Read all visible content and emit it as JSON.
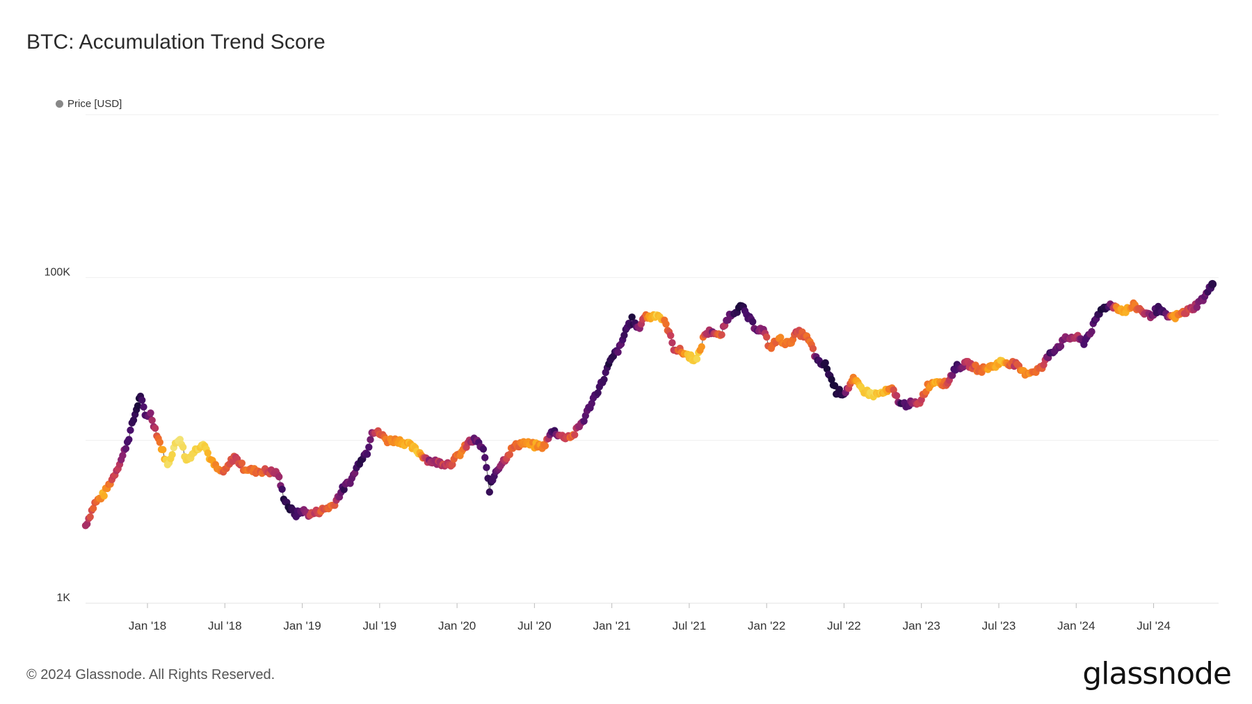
{
  "chart_data": {
    "type": "scatter",
    "title": "BTC: Accumulation Trend Score",
    "legend": [
      {
        "label": "Price [USD]",
        "color": "#888888"
      }
    ],
    "legend_placement": "top-left",
    "y_scale": "log",
    "ylim": [
      1000,
      1000000
    ],
    "y_ticks": [
      {
        "value": 1000,
        "label": "1K"
      },
      {
        "value": 100000,
        "label": "100K"
      }
    ],
    "y_gridlines": [
      1000,
      10000,
      100000,
      1000000
    ],
    "x_ticks": [
      "Jan '18",
      "Jul '18",
      "Jan '19",
      "Jul '19",
      "Jan '20",
      "Jul '20",
      "Jan '21",
      "Jul '21",
      "Jan '22",
      "Jul '22",
      "Jan '23",
      "Jul '23",
      "Jan '24",
      "Jul '24"
    ],
    "xlim": [
      2017.6,
      2024.92
    ],
    "color_scale": [
      "#1a0a3a",
      "#4a0f6b",
      "#8a2270",
      "#c73d5a",
      "#ee6a2c",
      "#fba41c",
      "#f7d13d",
      "#f3e47a"
    ],
    "series": [
      {
        "name": "Price [USD]",
        "points": [
          [
            2017.6,
            3000,
            0.35
          ],
          [
            2017.66,
            4100,
            0.55
          ],
          [
            2017.72,
            4700,
            0.75
          ],
          [
            2017.78,
            6000,
            0.45
          ],
          [
            2017.84,
            8000,
            0.3
          ],
          [
            2017.88,
            10500,
            0.15
          ],
          [
            2017.92,
            14500,
            0.05
          ],
          [
            2017.955,
            19000,
            0.02
          ],
          [
            2017.985,
            14000,
            0.15
          ],
          [
            2018.02,
            14500,
            0.25
          ],
          [
            2018.06,
            11000,
            0.45
          ],
          [
            2018.1,
            8500,
            0.75
          ],
          [
            2018.13,
            7000,
            0.9
          ],
          [
            2018.17,
            9000,
            0.95
          ],
          [
            2018.21,
            10500,
            1.0
          ],
          [
            2018.25,
            7500,
            0.95
          ],
          [
            2018.3,
            8500,
            0.85
          ],
          [
            2018.36,
            9800,
            0.9
          ],
          [
            2018.41,
            7500,
            0.7
          ],
          [
            2018.46,
            6500,
            0.6
          ],
          [
            2018.5,
            6400,
            0.55
          ],
          [
            2018.56,
            8000,
            0.45
          ],
          [
            2018.62,
            6800,
            0.55
          ],
          [
            2018.68,
            6500,
            0.6
          ],
          [
            2018.75,
            6500,
            0.55
          ],
          [
            2018.8,
            6400,
            0.45
          ],
          [
            2018.84,
            6300,
            0.35
          ],
          [
            2018.88,
            4500,
            0.05
          ],
          [
            2018.92,
            3800,
            0.02
          ],
          [
            2018.96,
            3500,
            0.1
          ],
          [
            2019.0,
            3700,
            0.2
          ],
          [
            2019.05,
            3500,
            0.4
          ],
          [
            2019.12,
            3700,
            0.5
          ],
          [
            2019.2,
            4000,
            0.6
          ],
          [
            2019.26,
            5000,
            0.1
          ],
          [
            2019.32,
            5800,
            0.25
          ],
          [
            2019.38,
            7800,
            0.05
          ],
          [
            2019.42,
            8500,
            0.15
          ],
          [
            2019.45,
            11500,
            0.3
          ],
          [
            2019.5,
            11000,
            0.5
          ],
          [
            2019.55,
            10000,
            0.6
          ],
          [
            2019.62,
            10000,
            0.7
          ],
          [
            2019.68,
            9500,
            0.75
          ],
          [
            2019.75,
            8500,
            0.8
          ],
          [
            2019.82,
            7500,
            0.3
          ],
          [
            2019.88,
            7300,
            0.4
          ],
          [
            2019.96,
            7200,
            0.45
          ],
          [
            2020.02,
            8300,
            0.65
          ],
          [
            2020.08,
            9800,
            0.4
          ],
          [
            2020.12,
            10000,
            0.2
          ],
          [
            2020.17,
            8800,
            0.15
          ],
          [
            2020.21,
            5000,
            0.05
          ],
          [
            2020.25,
            6500,
            0.2
          ],
          [
            2020.3,
            7500,
            0.4
          ],
          [
            2020.36,
            9000,
            0.55
          ],
          [
            2020.42,
            9700,
            0.6
          ],
          [
            2020.5,
            9300,
            0.7
          ],
          [
            2020.56,
            9200,
            0.65
          ],
          [
            2020.62,
            11500,
            0.1
          ],
          [
            2020.68,
            10500,
            0.45
          ],
          [
            2020.75,
            10700,
            0.55
          ],
          [
            2020.82,
            13500,
            0.2
          ],
          [
            2020.88,
            18000,
            0.1
          ],
          [
            2020.94,
            23000,
            0.15
          ],
          [
            2020.98,
            29000,
            0.05
          ],
          [
            2021.02,
            34000,
            0.1
          ],
          [
            2021.06,
            38000,
            0.2
          ],
          [
            2021.09,
            48000,
            0.1
          ],
          [
            2021.13,
            55000,
            0.05
          ],
          [
            2021.17,
            48000,
            0.25
          ],
          [
            2021.21,
            58000,
            0.5
          ],
          [
            2021.25,
            57000,
            0.75
          ],
          [
            2021.29,
            60000,
            0.85
          ],
          [
            2021.33,
            55000,
            0.7
          ],
          [
            2021.36,
            49000,
            0.5
          ],
          [
            2021.4,
            37000,
            0.4
          ],
          [
            2021.45,
            35000,
            0.6
          ],
          [
            2021.5,
            33000,
            0.8
          ],
          [
            2021.55,
            31000,
            0.9
          ],
          [
            2021.6,
            45000,
            0.45
          ],
          [
            2021.65,
            47000,
            0.3
          ],
          [
            2021.7,
            43000,
            0.55
          ],
          [
            2021.75,
            57000,
            0.2
          ],
          [
            2021.79,
            62000,
            0.1
          ],
          [
            2021.84,
            66000,
            0.05
          ],
          [
            2021.88,
            57000,
            0.12
          ],
          [
            2021.93,
            49000,
            0.2
          ],
          [
            2021.98,
            47000,
            0.3
          ],
          [
            2022.02,
            37000,
            0.55
          ],
          [
            2022.08,
            42000,
            0.6
          ],
          [
            2022.14,
            39000,
            0.65
          ],
          [
            2022.2,
            46000,
            0.45
          ],
          [
            2022.25,
            44000,
            0.55
          ],
          [
            2022.29,
            38000,
            0.6
          ],
          [
            2022.33,
            30000,
            0.1
          ],
          [
            2022.38,
            29000,
            0.05
          ],
          [
            2022.45,
            20000,
            0.02
          ],
          [
            2022.5,
            19500,
            0.1
          ],
          [
            2022.56,
            23500,
            0.65
          ],
          [
            2022.62,
            20500,
            0.85
          ],
          [
            2022.68,
            19000,
            0.9
          ],
          [
            2022.75,
            19500,
            0.8
          ],
          [
            2022.81,
            20500,
            0.6
          ],
          [
            2022.87,
            16500,
            0.1
          ],
          [
            2022.92,
            16800,
            0.2
          ],
          [
            2022.98,
            16600,
            0.4
          ],
          [
            2023.04,
            21500,
            0.6
          ],
          [
            2023.1,
            23500,
            0.75
          ],
          [
            2023.16,
            22000,
            0.55
          ],
          [
            2023.22,
            28000,
            0.1
          ],
          [
            2023.3,
            29500,
            0.4
          ],
          [
            2023.38,
            27000,
            0.6
          ],
          [
            2023.46,
            28500,
            0.7
          ],
          [
            2023.52,
            30500,
            0.8
          ],
          [
            2023.6,
            29500,
            0.45
          ],
          [
            2023.66,
            26000,
            0.7
          ],
          [
            2023.72,
            26500,
            0.6
          ],
          [
            2023.78,
            28000,
            0.55
          ],
          [
            2023.83,
            34500,
            0.1
          ],
          [
            2023.88,
            37500,
            0.2
          ],
          [
            2023.94,
            42500,
            0.3
          ],
          [
            2024.0,
            43000,
            0.4
          ],
          [
            2024.05,
            40000,
            0.15
          ],
          [
            2024.1,
            48000,
            0.2
          ],
          [
            2024.16,
            63000,
            0.05
          ],
          [
            2024.21,
            68000,
            0.08
          ],
          [
            2024.26,
            66000,
            0.6
          ],
          [
            2024.31,
            62000,
            0.75
          ],
          [
            2024.37,
            67000,
            0.65
          ],
          [
            2024.42,
            63000,
            0.5
          ],
          [
            2024.47,
            58000,
            0.35
          ],
          [
            2024.53,
            64000,
            0.1
          ],
          [
            2024.58,
            58000,
            0.15
          ],
          [
            2024.63,
            57000,
            0.7
          ],
          [
            2024.68,
            60000,
            0.55
          ],
          [
            2024.73,
            63000,
            0.45
          ],
          [
            2024.78,
            68000,
            0.3
          ],
          [
            2024.83,
            76000,
            0.2
          ],
          [
            2024.88,
            91000,
            0.05
          ]
        ]
      }
    ]
  },
  "footer": {
    "copyright": "© 2024 Glassnode. All Rights Reserved.",
    "brand": "glassnode"
  }
}
